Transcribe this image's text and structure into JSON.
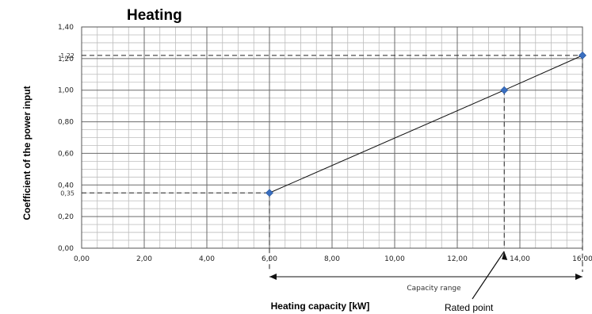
{
  "chart_data": {
    "type": "line",
    "title": "Heating",
    "xlabel": "Heating capacity [kW]",
    "ylabel": "Coefficient of the power input",
    "xlim": [
      0,
      16
    ],
    "ylim": [
      0,
      1.4
    ],
    "x_ticks": [
      "0,00",
      "2,00",
      "4,00",
      "6,00",
      "8,00",
      "10,00",
      "12,00",
      "14,00",
      "16,00"
    ],
    "y_ticks": [
      "0,00",
      "0,20",
      "0,40",
      "0,60",
      "0,80",
      "1,00",
      "1,20",
      "1,40"
    ],
    "grid": true,
    "series": [
      {
        "points": [
          {
            "x": 6.0,
            "y": 0.35
          },
          {
            "x": 13.5,
            "y": 1.0
          },
          {
            "x": 16.0,
            "y": 1.22
          }
        ],
        "color": "#3a6fc0"
      }
    ],
    "value_labels": [
      {
        "text": "0,35",
        "y": 0.35
      },
      {
        "text": "1,22",
        "y": 1.22
      }
    ],
    "annotations": {
      "capacity_range": {
        "text": "Capacity range",
        "from": 6.0,
        "to": 16.0
      },
      "rated_point": {
        "text": "Rated point",
        "x": 13.5
      }
    }
  }
}
